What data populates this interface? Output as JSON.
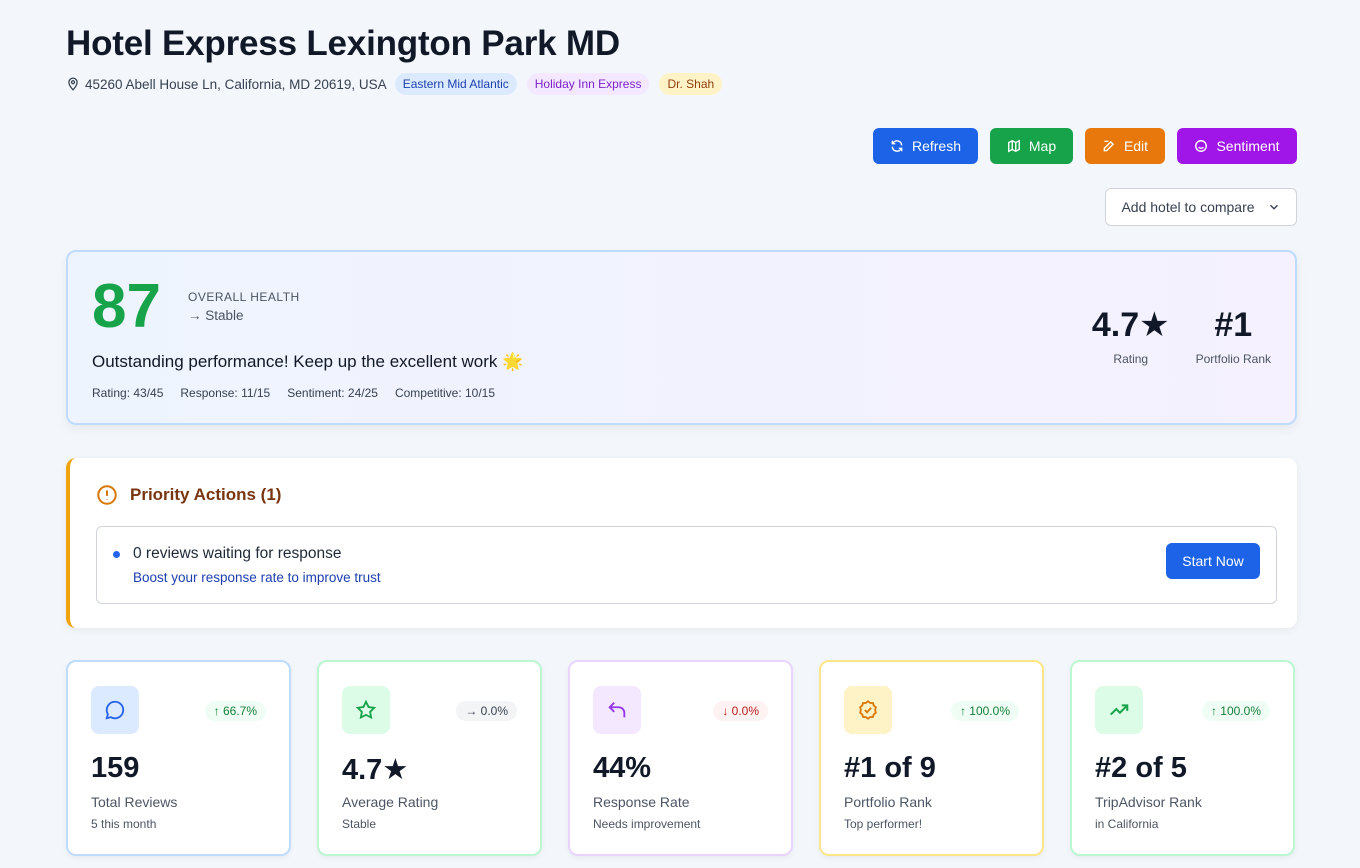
{
  "header": {
    "title": "Hotel Express Lexington Park MD",
    "address": "45260 Abell House Ln, California, MD 20619, USA",
    "tags": [
      "Eastern Mid Atlantic",
      "Holiday Inn Express",
      "Dr. Shah"
    ]
  },
  "toolbar": {
    "refresh_label": "Refresh",
    "map_label": "Map",
    "edit_label": "Edit",
    "sentiment_label": "Sentiment",
    "compare_label": "Add hotel to compare"
  },
  "health": {
    "score": "87",
    "label": "OVERALL HEALTH",
    "trend": "→ Stable",
    "message": "Outstanding performance! Keep up the excellent work 🌟",
    "breakdown": [
      "Rating: 43/45",
      "Response: 11/15",
      "Sentiment: 24/25",
      "Competitive: 10/15"
    ],
    "rating_value": "4.7★",
    "rating_label": "Rating",
    "rank_value": "#1",
    "rank_label": "Portfolio Rank"
  },
  "priority": {
    "title": "Priority Actions (1)",
    "item_text": "0 reviews waiting for response",
    "item_sub": "Boost your response rate to improve trust",
    "button_label": "Start Now"
  },
  "cards": [
    {
      "value": "159",
      "label": "Total Reviews",
      "sub": "5 this month",
      "change": "↑ 66.7%",
      "icon": "chat-icon"
    },
    {
      "value": "4.7★",
      "label": "Average Rating",
      "sub": "Stable",
      "change": "→ 0.0%",
      "icon": "star-icon"
    },
    {
      "value": "44%",
      "label": "Response Rate",
      "sub": "Needs improvement",
      "change": "↓ 0.0%",
      "icon": "reply-icon"
    },
    {
      "value": "#1 of 9",
      "label": "Portfolio Rank",
      "sub": "Top performer!",
      "change": "↑ 100.0%",
      "icon": "badge-check-icon"
    },
    {
      "value": "#2 of 5",
      "label": "TripAdvisor Rank",
      "sub": "in California",
      "change": "↑ 100.0%",
      "icon": "trending-up-icon"
    }
  ]
}
